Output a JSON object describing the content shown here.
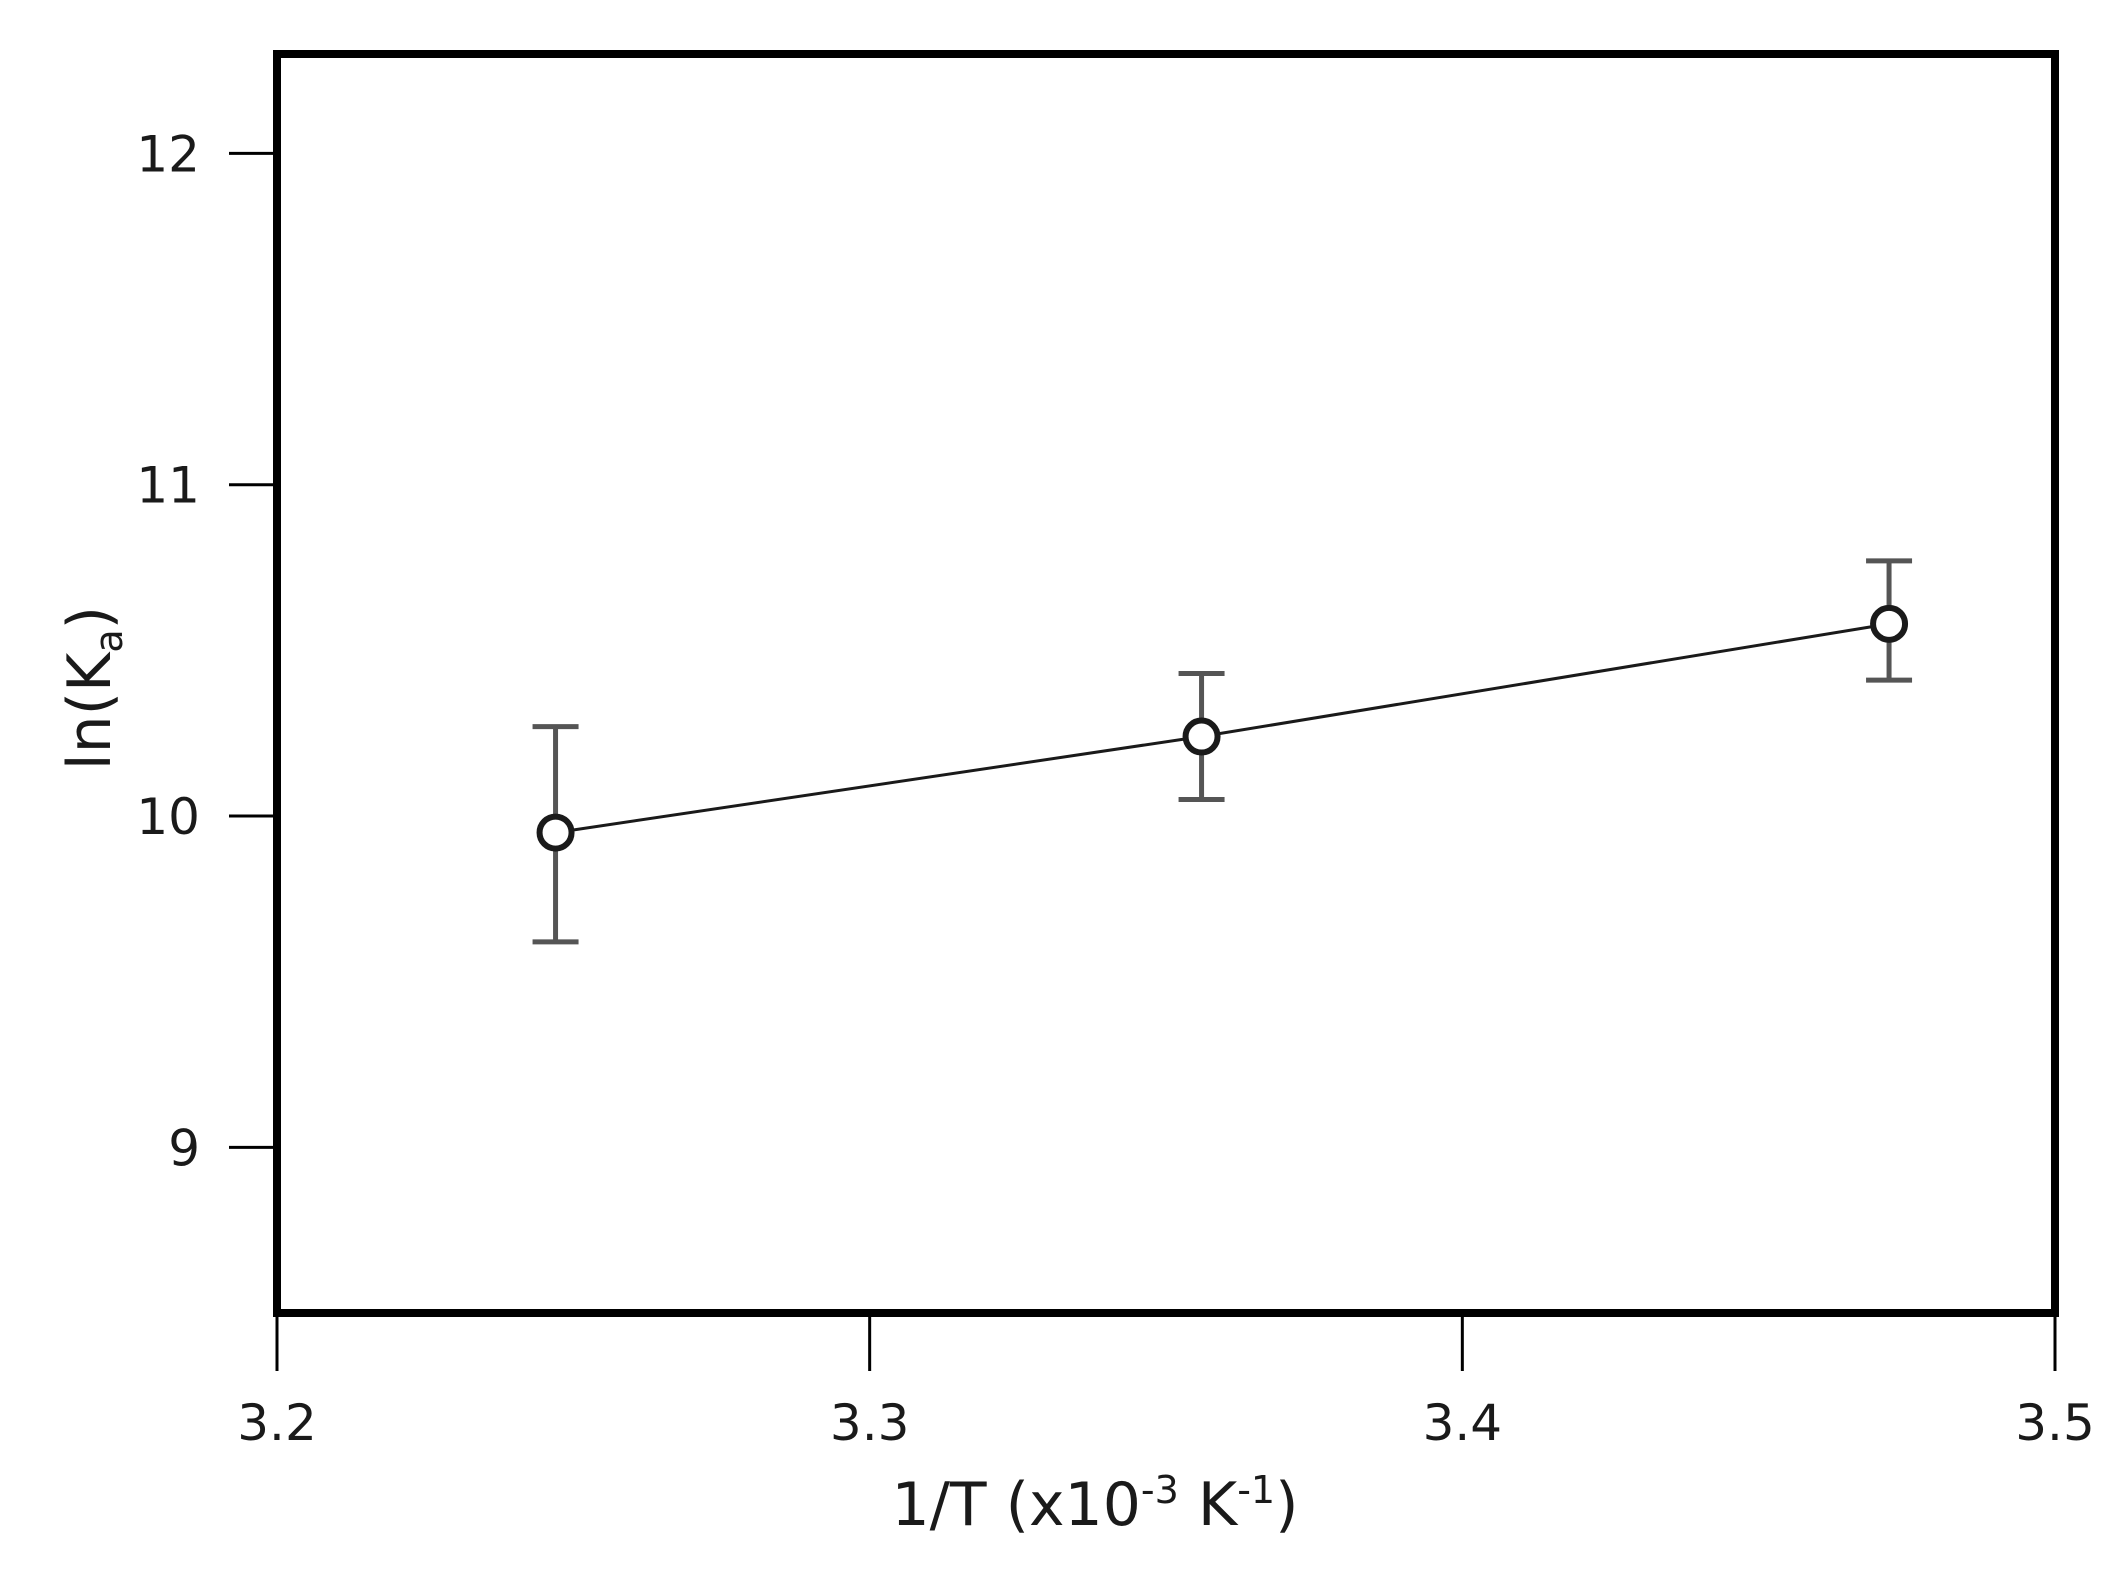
{
  "chart_data": {
    "type": "scatter",
    "title": "",
    "xlabel": {
      "base": "1/T (x10",
      "sup1": "-3",
      "mid": " K",
      "sup2": "-1",
      "end": ")"
    },
    "ylabel": {
      "base": "ln(K",
      "sub": "a",
      "end": ")"
    },
    "xlim": [
      3.2,
      3.5
    ],
    "ylim": [
      8.5,
      12.3
    ],
    "xticks": [
      3.2,
      3.3,
      3.4,
      3.5
    ],
    "xtick_labels": [
      "3.2",
      "3.3",
      "3.4",
      "3.5"
    ],
    "yticks": [
      9,
      10,
      11,
      12
    ],
    "ytick_labels": [
      "9",
      "10",
      "11",
      "12"
    ],
    "grid": false,
    "series": [
      {
        "x": [
          3.247,
          3.356,
          3.472
        ],
        "y": [
          9.95,
          10.24,
          10.58
        ],
        "yerr_low": [
          9.62,
          10.05,
          10.41
        ],
        "yerr_high": [
          10.27,
          10.43,
          10.77
        ],
        "marker": "open-circle",
        "line": true,
        "color": "#1a1a1a",
        "errorbar_color": "#555555"
      }
    ]
  }
}
